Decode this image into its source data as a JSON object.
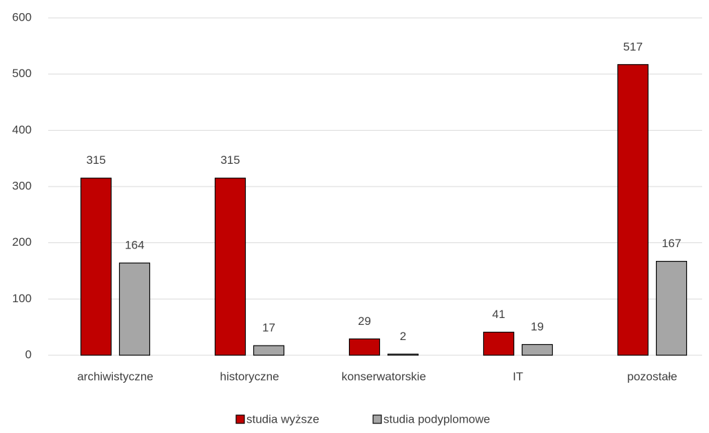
{
  "chart_data": {
    "type": "bar",
    "categories": [
      "archiwistyczne",
      "historyczne",
      "konserwatorskie",
      "IT",
      "pozostałe"
    ],
    "series": [
      {
        "name": "studia wyższe",
        "color": "#c00000",
        "values": [
          315,
          315,
          29,
          41,
          517
        ]
      },
      {
        "name": "studia podyplomowe",
        "color": "#a6a6a6",
        "values": [
          164,
          17,
          2,
          19,
          167
        ]
      }
    ],
    "ylim": [
      0,
      600
    ],
    "yticks": [
      0,
      100,
      200,
      300,
      400,
      500,
      600
    ],
    "grid": true,
    "legend": "bottom"
  }
}
